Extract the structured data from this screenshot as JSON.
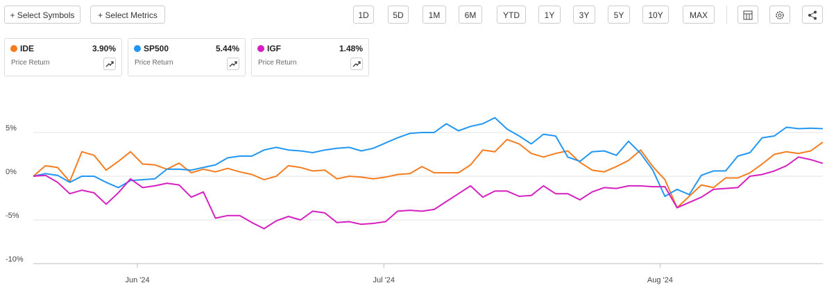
{
  "toolbar": {
    "left_buttons": [
      "+ Select Symbols",
      "+ Select Metrics"
    ],
    "periods": [
      "1D",
      "5D",
      "1M",
      "6M",
      "YTD",
      "1Y",
      "3Y",
      "5Y",
      "10Y",
      "MAX"
    ]
  },
  "chart_data": {
    "type": "line",
    "x": [
      0,
      1,
      2,
      3,
      4,
      5,
      6,
      7,
      8,
      9,
      10,
      11,
      12,
      13,
      14,
      15,
      16,
      17,
      18,
      19,
      20,
      21,
      22,
      23,
      24,
      25,
      26,
      27,
      28,
      29,
      30,
      31,
      32,
      33,
      34,
      35,
      36,
      37,
      38,
      39,
      40,
      41,
      42,
      43,
      44,
      45,
      46,
      47,
      48,
      49,
      50,
      51,
      52,
      53,
      54,
      55,
      56,
      57,
      58,
      59,
      60,
      61,
      62,
      63,
      64,
      65
    ],
    "xlim": [
      0,
      65
    ],
    "xticks": [
      {
        "value": 8.57,
        "label": "Jun '24"
      },
      {
        "value": 28.86,
        "label": "Jul '24"
      },
      {
        "value": 51.6,
        "label": "Aug '24"
      }
    ],
    "ylim": [
      -10,
      10
    ],
    "yticks": [
      {
        "value": -10,
        "label": "-10%"
      },
      {
        "value": -5,
        "label": "-5%"
      },
      {
        "value": 0,
        "label": "0%"
      },
      {
        "value": 5,
        "label": "5%"
      }
    ],
    "grid": true,
    "series": [
      {
        "name": "IDE",
        "color": "#f57c1f",
        "legend_value": "3.90%",
        "legend_subtitle": "Price Return",
        "values": [
          0,
          1.2,
          1.0,
          -0.6,
          2.8,
          2.4,
          0.7,
          1.7,
          2.8,
          1.4,
          1.3,
          0.8,
          1.5,
          0.4,
          0.8,
          0.5,
          0.9,
          0.5,
          0.2,
          -0.4,
          0.0,
          1.2,
          1.0,
          0.6,
          0.7,
          -0.3,
          0.0,
          -0.1,
          -0.3,
          -0.1,
          0.2,
          0.3,
          1.1,
          0.4,
          0.4,
          0.4,
          1.3,
          3.0,
          2.8,
          4.2,
          3.7,
          2.6,
          2.2,
          2.6,
          2.9,
          1.6,
          0.7,
          0.5,
          1.1,
          1.8,
          3.0,
          1.1,
          -0.4,
          -3.6,
          -2.3,
          -1.0,
          -1.3,
          -0.2,
          -0.2,
          0.4,
          1.4,
          2.5,
          2.8,
          2.6,
          2.9,
          3.9
        ]
      },
      {
        "name": "SP500",
        "color": "#2196f3",
        "legend_value": "5.44%",
        "legend_subtitle": "Price Return",
        "values": [
          0,
          0.3,
          0.1,
          -0.7,
          0.0,
          0.0,
          -0.7,
          -1.3,
          -0.5,
          -0.4,
          -0.3,
          0.8,
          0.8,
          0.7,
          1.0,
          1.3,
          2.1,
          2.3,
          2.3,
          3.0,
          3.3,
          3.0,
          2.9,
          2.7,
          3.0,
          3.2,
          3.3,
          2.9,
          3.2,
          3.8,
          4.4,
          4.9,
          5.0,
          5.0,
          6.0,
          5.2,
          5.7,
          6.0,
          6.7,
          5.4,
          4.6,
          3.7,
          4.8,
          4.6,
          2.2,
          1.7,
          2.8,
          2.9,
          2.4,
          4.0,
          2.6,
          0.7,
          -2.3,
          -1.5,
          -2.1,
          0.1,
          0.6,
          0.6,
          2.3,
          2.7,
          4.4,
          4.6,
          5.6,
          5.44,
          5.5,
          5.44
        ]
      },
      {
        "name": "IGF",
        "color": "#d61fc0",
        "legend_value": "1.48%",
        "legend_subtitle": "Price Return",
        "values": [
          0,
          0.1,
          -0.7,
          -2.0,
          -1.6,
          -1.9,
          -3.2,
          -1.9,
          -0.3,
          -1.3,
          -1.1,
          -0.8,
          -1.0,
          -2.4,
          -1.8,
          -4.8,
          -4.5,
          -4.5,
          -5.3,
          -6.0,
          -5.1,
          -4.6,
          -5.0,
          -4.0,
          -4.2,
          -5.3,
          -5.2,
          -5.5,
          -5.4,
          -5.2,
          -4.0,
          -3.9,
          -4.0,
          -3.8,
          -2.9,
          -2.0,
          -1.1,
          -2.4,
          -1.7,
          -1.7,
          -2.3,
          -2.2,
          -1.1,
          -2.0,
          -2.0,
          -2.7,
          -1.8,
          -1.3,
          -1.4,
          -1.1,
          -1.1,
          -1.2,
          -1.2,
          -3.6,
          -3.0,
          -2.4,
          -1.5,
          -1.4,
          -1.3,
          0.0,
          0.2,
          0.6,
          1.2,
          2.2,
          1.9,
          1.48
        ]
      }
    ]
  }
}
